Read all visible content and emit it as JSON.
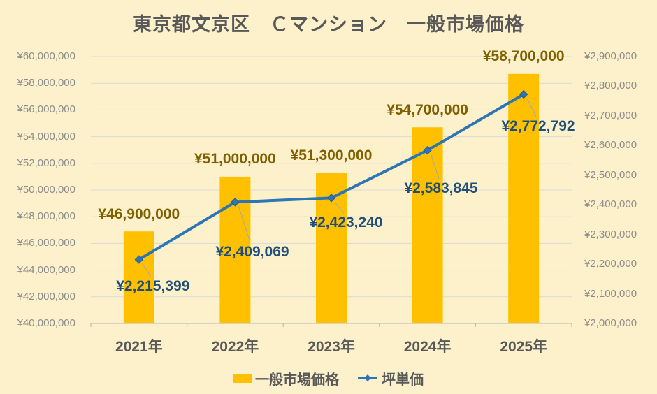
{
  "title": "東京都文京区　Ｃマンション　一般市場価格",
  "colors": {
    "background": "#FDF1CB",
    "bar": "#FFC000",
    "bar_label": "#7F6000",
    "line": "#2E75B6",
    "marker_edge": "#1F5C99",
    "line_label": "#1F4E79",
    "title_text": "#595959",
    "axis_text": "#8C8C8C",
    "gridline": "#D9D9D9",
    "axis_line": "#BFBFBF",
    "leader_line": "#9AA7B8"
  },
  "chart_data": {
    "type": "bar+line combo",
    "title": "東京都文京区　Ｃマンション　一般市場価格",
    "categories": [
      "2021年",
      "2022年",
      "2023年",
      "2024年",
      "2025年"
    ],
    "series": [
      {
        "name": "一般市場価格",
        "type": "bar",
        "axis": "left",
        "values": [
          46900000,
          51000000,
          51300000,
          54700000,
          58700000
        ],
        "labels": [
          "¥46,900,000",
          "¥51,000,000",
          "¥51,300,000",
          "¥54,700,000",
          "¥58,700,000"
        ]
      },
      {
        "name": "坪単価",
        "type": "line",
        "axis": "right",
        "values": [
          2215399,
          2409069,
          2423240,
          2583845,
          2772792
        ],
        "labels": [
          "¥2,215,399",
          "¥2,409,069",
          "¥2,423,240",
          "¥2,583,845",
          "¥2,772,792"
        ]
      }
    ],
    "left_axis": {
      "min": 40000000,
      "max": 60000000,
      "step": 2000000,
      "ticks": [
        "¥60,000,000",
        "¥58,000,000",
        "¥56,000,000",
        "¥54,000,000",
        "¥52,000,000",
        "¥50,000,000",
        "¥48,000,000",
        "¥46,000,000",
        "¥44,000,000",
        "¥42,000,000",
        "¥40,000,000"
      ]
    },
    "right_axis": {
      "min": 2000000,
      "max": 2900000,
      "step": 100000,
      "ticks": [
        "¥2,900,000",
        "¥2,800,000",
        "¥2,700,000",
        "¥2,600,000",
        "¥2,500,000",
        "¥2,400,000",
        "¥2,300,000",
        "¥2,200,000",
        "¥2,100,000",
        "¥2,000,000"
      ]
    },
    "legend": [
      "一般市場価格",
      "坪単価"
    ],
    "legend_position": "bottom",
    "grid": true
  }
}
